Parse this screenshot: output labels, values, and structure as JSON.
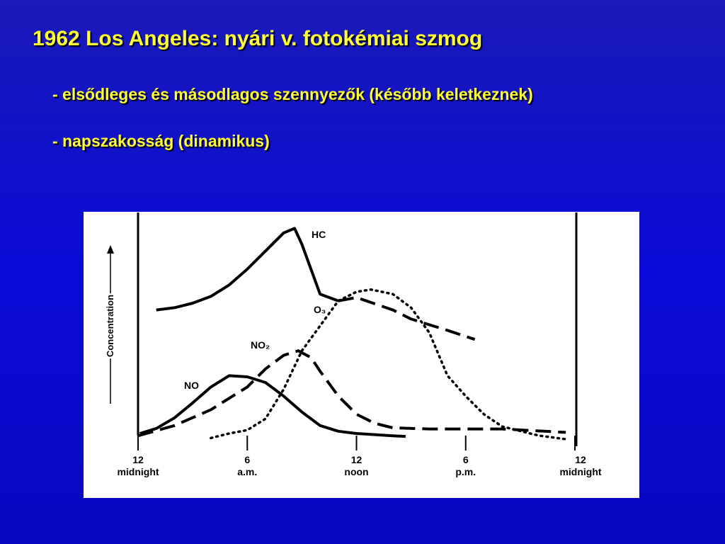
{
  "slide": {
    "title": "1962 Los Angeles: nyári v. fotokémiai szmog",
    "bullets": [
      "- elsődleges és másodlagos szennyezők (később keletkeznek)",
      "- napszakosság (dinamikus)"
    ]
  },
  "chart_data": {
    "type": "line",
    "ylabel": "Concentration",
    "xlim": [
      0,
      24
    ],
    "ylim": [
      0,
      10
    ],
    "xticks": [
      {
        "value": 0,
        "label": "12 midnight"
      },
      {
        "value": 6,
        "label": "6 a.m."
      },
      {
        "value": 12,
        "label": "12 noon"
      },
      {
        "value": 18,
        "label": "6 p.m."
      },
      {
        "value": 24,
        "label": "12 midnight"
      }
    ],
    "series": [
      {
        "name": "HC",
        "color": "#000000",
        "dash": "solid",
        "dashed_after": 11,
        "x": [
          1,
          2,
          3,
          4,
          5,
          6,
          7,
          8,
          8.6,
          9,
          10,
          11,
          12,
          14,
          15,
          17,
          18.5
        ],
        "values": [
          5.7,
          5.8,
          6.0,
          6.3,
          6.8,
          7.5,
          8.3,
          9.1,
          9.3,
          8.6,
          6.4,
          6.1,
          6.25,
          5.7,
          5.3,
          4.8,
          4.4
        ]
      },
      {
        "name": "O₃",
        "color": "#000000",
        "dash": "dotted",
        "x": [
          4,
          5,
          6,
          7,
          8,
          9,
          10,
          11,
          12,
          12.8,
          14,
          15,
          16,
          17,
          18,
          19,
          20,
          22,
          23.5
        ],
        "values": [
          0.05,
          0.25,
          0.4,
          0.9,
          2.2,
          3.9,
          5.0,
          6.1,
          6.5,
          6.6,
          6.4,
          5.8,
          4.7,
          2.8,
          1.9,
          1.1,
          0.56,
          0.16,
          0
        ]
      },
      {
        "name": "NO₂",
        "color": "#000000",
        "dash": "dashed",
        "x": [
          0,
          2,
          4,
          6,
          7,
          8,
          8.8,
          9.5,
          10,
          11,
          12,
          13,
          14,
          16,
          20,
          23.5
        ],
        "values": [
          0.15,
          0.6,
          1.3,
          2.3,
          3.1,
          3.7,
          3.9,
          3.6,
          3.0,
          1.9,
          1.1,
          0.7,
          0.5,
          0.45,
          0.45,
          0.3
        ]
      },
      {
        "name": "NO",
        "color": "#000000",
        "dash": "solid",
        "x": [
          0.1,
          1,
          2,
          3,
          4,
          5,
          6,
          7,
          8,
          9,
          10,
          11,
          12,
          14,
          14.7
        ],
        "values": [
          0.25,
          0.47,
          0.94,
          1.6,
          2.3,
          2.8,
          2.75,
          2.5,
          1.9,
          1.2,
          0.6,
          0.35,
          0.25,
          0.15,
          0.12
        ]
      }
    ]
  }
}
